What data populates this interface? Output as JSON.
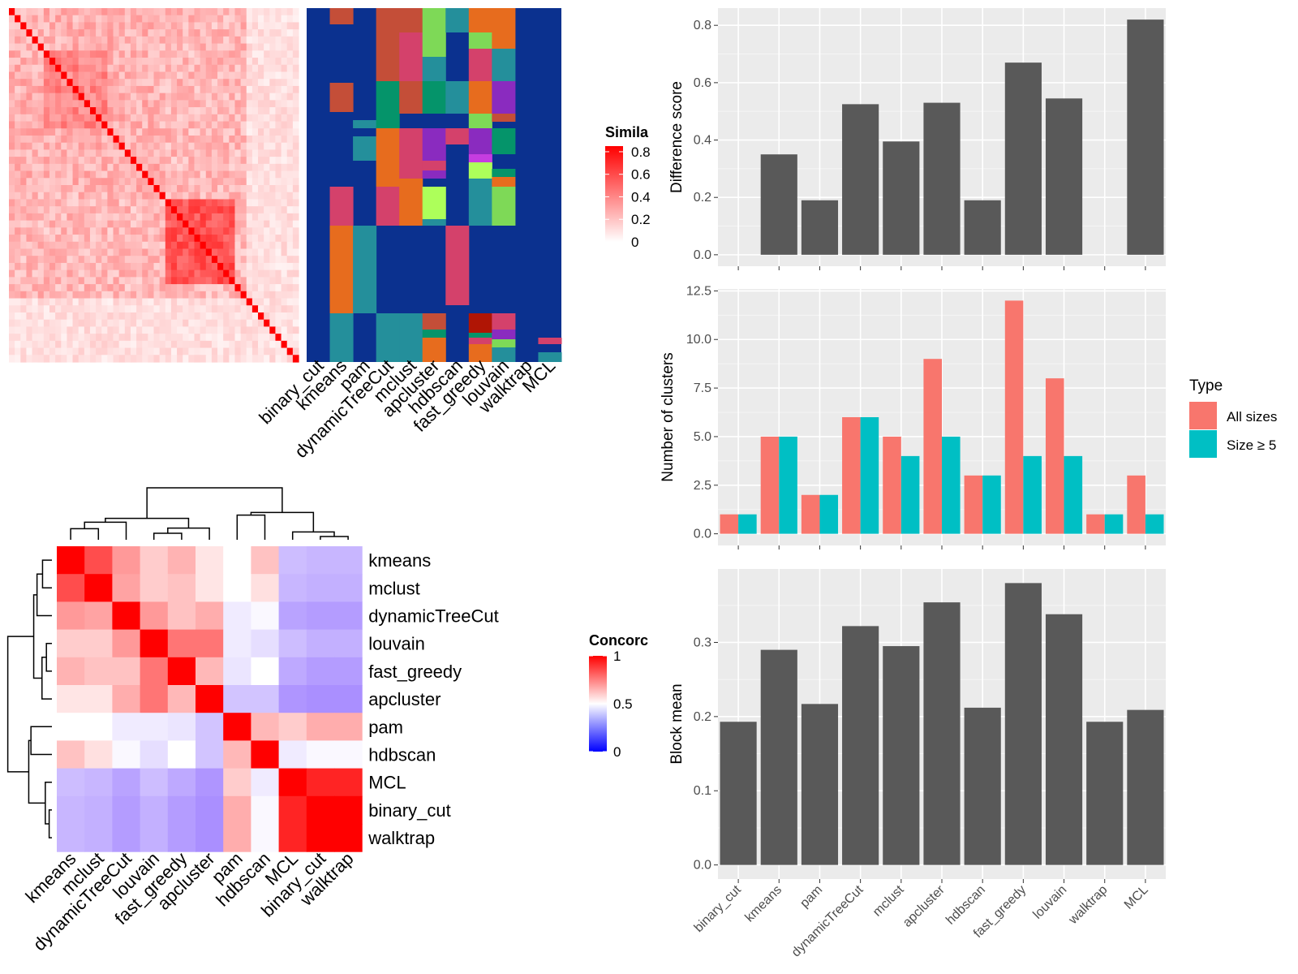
{
  "chart_data": [
    {
      "type": "heatmap",
      "panel": "similarity-matrix",
      "legend_title": "Simila",
      "legend_ticks": [
        "0",
        "0.2",
        "0.4",
        "0.6",
        "0.8"
      ],
      "colors": {
        "low": "#ffffff",
        "high": "#ff0000"
      },
      "color_range": [
        0,
        0.85
      ]
    },
    {
      "type": "heatmap",
      "panel": "cluster-assignments",
      "columns": [
        "binary_cut",
        "kmeans",
        "pam",
        "dynamicTreeCut",
        "mclust",
        "apcluster",
        "hdbscan",
        "fast_greedy",
        "louvain",
        "walktrap",
        "MCL"
      ],
      "background_color": "#0b318f"
    },
    {
      "type": "heatmap",
      "panel": "concordance",
      "legend_title": "Concorc",
      "legend_ticks": [
        "0",
        "0.5",
        "1"
      ],
      "colors": {
        "low": "#0000ff",
        "mid": "#ffffff",
        "high": "#ff0000"
      },
      "rows": [
        "kmeans",
        "mclust",
        "dynamicTreeCut",
        "louvain",
        "fast_greedy",
        "apcluster",
        "pam",
        "hdbscan",
        "MCL",
        "binary_cut",
        "walktrap"
      ],
      "columns": [
        "kmeans",
        "mclust",
        "dynamicTreeCut",
        "louvain",
        "fast_greedy",
        "apcluster",
        "pam",
        "hdbscan",
        "MCL",
        "binary_cut",
        "walktrap"
      ],
      "values": [
        [
          1.0,
          0.85,
          0.7,
          0.6,
          0.65,
          0.55,
          0.5,
          0.62,
          0.3,
          0.28,
          0.28
        ],
        [
          0.85,
          1.0,
          0.68,
          0.6,
          0.62,
          0.55,
          0.5,
          0.56,
          0.28,
          0.26,
          0.26
        ],
        [
          0.7,
          0.68,
          1.0,
          0.7,
          0.62,
          0.66,
          0.44,
          0.48,
          0.22,
          0.2,
          0.2
        ],
        [
          0.6,
          0.6,
          0.7,
          1.0,
          0.77,
          0.77,
          0.44,
          0.4,
          0.3,
          0.26,
          0.26
        ],
        [
          0.65,
          0.62,
          0.62,
          0.77,
          1.0,
          0.64,
          0.42,
          0.5,
          0.24,
          0.2,
          0.2
        ],
        [
          0.55,
          0.55,
          0.66,
          0.77,
          0.64,
          1.0,
          0.32,
          0.32,
          0.18,
          0.16,
          0.16
        ],
        [
          0.5,
          0.5,
          0.44,
          0.44,
          0.42,
          0.32,
          1.0,
          0.64,
          0.6,
          0.66,
          0.66
        ],
        [
          0.62,
          0.56,
          0.48,
          0.4,
          0.5,
          0.32,
          0.64,
          1.0,
          0.44,
          0.48,
          0.48
        ],
        [
          0.3,
          0.28,
          0.22,
          0.3,
          0.24,
          0.18,
          0.6,
          0.44,
          1.0,
          0.93,
          0.93
        ],
        [
          0.28,
          0.26,
          0.2,
          0.26,
          0.2,
          0.16,
          0.66,
          0.48,
          0.93,
          1.0,
          1.0
        ],
        [
          0.28,
          0.26,
          0.2,
          0.26,
          0.2,
          0.16,
          0.66,
          0.48,
          0.93,
          1.0,
          1.0
        ]
      ]
    },
    {
      "type": "bar",
      "panel": "difference-score",
      "categories": [
        "binary_cut",
        "kmeans",
        "pam",
        "dynamicTreeCut",
        "mclust",
        "apcluster",
        "hdbscan",
        "fast_greedy",
        "louvain",
        "walktrap",
        "MCL"
      ],
      "values": [
        0,
        0.35,
        0.19,
        0.525,
        0.395,
        0.53,
        0.19,
        0.67,
        0.545,
        0,
        0.82
      ],
      "ylabel": "Difference score",
      "ylim": [
        -0.04,
        0.86
      ],
      "yticks": [
        "0.0",
        "0.2",
        "0.4",
        "0.6",
        "0.8"
      ],
      "bar_color": "#595959"
    },
    {
      "type": "bar",
      "panel": "number-of-clusters",
      "categories": [
        "binary_cut",
        "kmeans",
        "pam",
        "dynamicTreeCut",
        "mclust",
        "apcluster",
        "hdbscan",
        "fast_greedy",
        "louvain",
        "walktrap",
        "MCL"
      ],
      "series": [
        {
          "name": "All sizes",
          "values": [
            1,
            5,
            2,
            6,
            5,
            9,
            3,
            12,
            8,
            1,
            3
          ],
          "color": "#f8766d"
        },
        {
          "name": "Size ≥ 5",
          "values": [
            1,
            5,
            2,
            6,
            4,
            5,
            3,
            4,
            4,
            1,
            1
          ],
          "color": "#00bfc4"
        }
      ],
      "ylabel": "Number of clusters",
      "ylim": [
        -0.6,
        12.6
      ],
      "yticks": [
        "0.0",
        "2.5",
        "5.0",
        "7.5",
        "10.0",
        "12.5"
      ],
      "legend_title": "Type",
      "legend_position": "right"
    },
    {
      "type": "bar",
      "panel": "block-mean",
      "categories": [
        "binary_cut",
        "kmeans",
        "pam",
        "dynamicTreeCut",
        "mclust",
        "apcluster",
        "hdbscan",
        "fast_greedy",
        "louvain",
        "walktrap",
        "MCL"
      ],
      "values": [
        0.193,
        0.29,
        0.217,
        0.322,
        0.295,
        0.354,
        0.212,
        0.38,
        0.338,
        0.193,
        0.209
      ],
      "ylabel": "Block mean",
      "ylim": [
        -0.019,
        0.399
      ],
      "yticks": [
        "0.0",
        "0.1",
        "0.2",
        "0.3"
      ],
      "bar_color": "#595959"
    }
  ]
}
